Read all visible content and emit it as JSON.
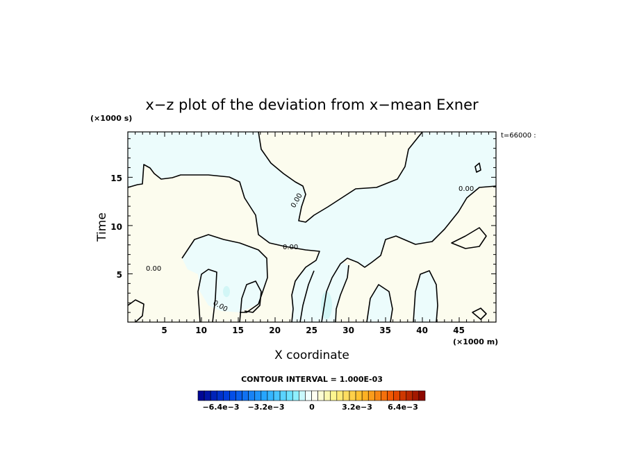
{
  "chart_data": {
    "type": "heatmap",
    "title": "x−z plot of the deviation from x−mean Exner",
    "xlabel": "X coordinate",
    "ylabel": "Time",
    "x_unit": "(×1000 m)",
    "y_unit": "(×1000 s)",
    "time_label": "t=66000 :",
    "xlim": [
      0,
      50
    ],
    "ylim": [
      0,
      19.7
    ],
    "x_ticks": [
      5,
      10,
      15,
      20,
      25,
      30,
      35,
      40,
      45
    ],
    "y_ticks": [
      5,
      10,
      15
    ],
    "contour_interval_text": "CONTOUR INTERVAL = 1.000E-03",
    "contour_labels": [
      "0.00",
      "0.00",
      "0.00",
      "0.00",
      "0.00"
    ],
    "colorbar": {
      "min": -0.0072,
      "max": 0.0072,
      "step": 0.0004,
      "tick_values": [
        -0.0064,
        -0.0032,
        0,
        0.0032,
        0.0064
      ],
      "tick_labels": [
        "−6.4e−3",
        "−3.2e−3",
        "0",
        "3.2e−3",
        "6.4e−3"
      ]
    },
    "fill_colors": {
      "negative_region": "#ecfcfc",
      "positive_region": "#fcfcee",
      "cyan_patch": "#d2f6f6"
    }
  }
}
